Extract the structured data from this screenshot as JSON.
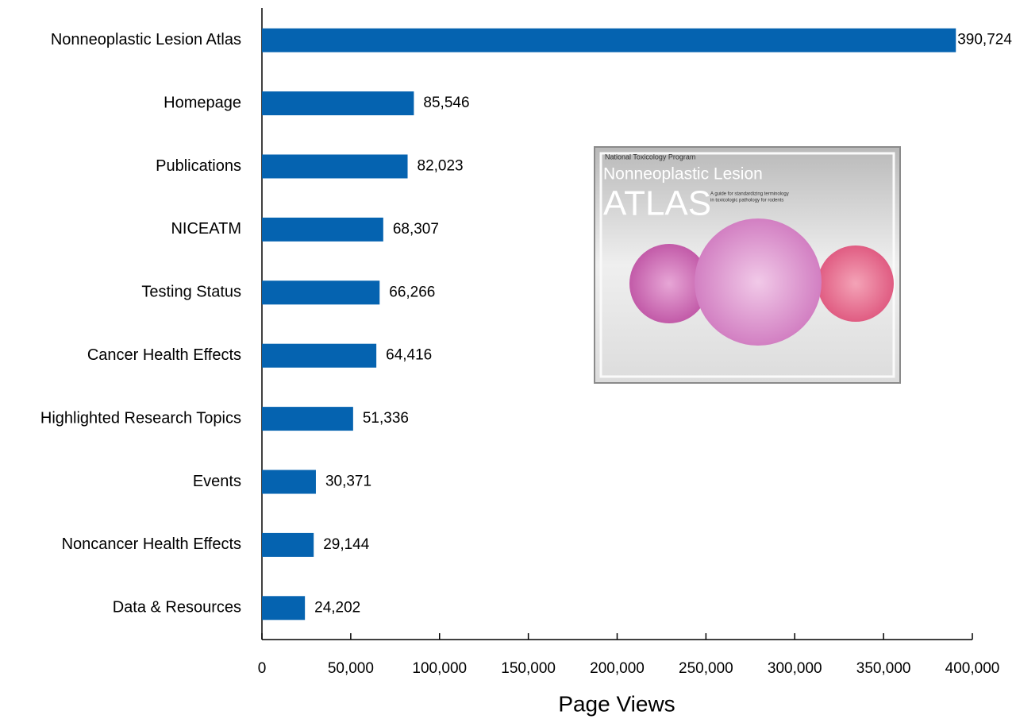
{
  "chart_data": {
    "type": "bar",
    "orientation": "horizontal",
    "x_label": "Page Views",
    "categories": [
      "Nonneoplastic Lesion Atlas",
      "Homepage",
      "Publications",
      "NICEATM",
      "Testing Status",
      "Cancer Health Effects",
      "Highlighted Research Topics",
      "Events",
      "Noncancer Health Effects",
      "Data & Resources"
    ],
    "values": [
      390724,
      85546,
      82023,
      68307,
      66266,
      64416,
      51336,
      30371,
      29144,
      24202
    ],
    "value_labels": [
      "390,724",
      "85,546",
      "82,023",
      "68,307",
      "66,266",
      "64,416",
      "51,336",
      "30,371",
      "29,144",
      "24,202"
    ],
    "color": "#0563b0",
    "xlim": [
      0,
      400000
    ],
    "xticks": [
      0,
      {
        "value": 50000,
        "label": "50,000"
      },
      {
        "value": 100000,
        "label": "100,000"
      },
      {
        "value": 150000,
        "label": "150,000"
      },
      {
        "value": 200000,
        "label": "200,000"
      },
      {
        "value": 250000,
        "label": "250,000"
      },
      {
        "value": 300000,
        "label": "300,000"
      },
      {
        "value": 350000,
        "label": "350,000"
      },
      {
        "value": 400000,
        "label": "400,000"
      }
    ],
    "grid": false,
    "image_texts": [
      "National Toxicology Program",
      "Nonneoplastic Lesion",
      "ATLAS",
      "A guide for standardizing terminology",
      "in toxicologic pathology for rodents"
    ]
  }
}
